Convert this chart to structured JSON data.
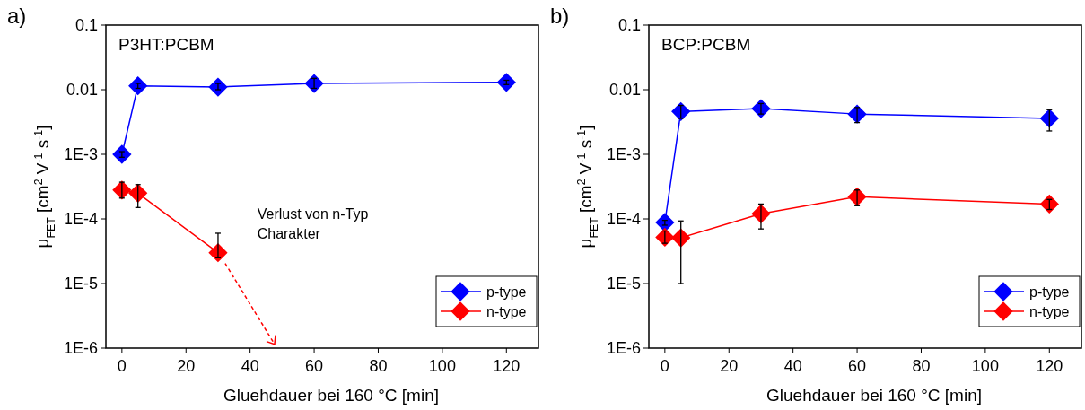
{
  "chart_data": [
    {
      "type": "line",
      "title": "a)",
      "xlabel": "Gluehdauer bei 160 °C [min]",
      "ylabel": "μ$_{FET}$ [cm$^{2}$ V$^{-1}$ s$^{-1}$]",
      "log": "y",
      "marker": "diamond",
      "legend": "bottom right",
      "x": [
        0,
        5,
        30,
        60,
        120
      ],
      "xlim": [
        -5,
        130
      ],
      "xticks": [
        0,
        20,
        40,
        60,
        80,
        100,
        120
      ],
      "ylim": [
        1e-06,
        0.1
      ],
      "yticks": [
        {
          "value": 1e-06,
          "label": "1E-6"
        },
        {
          "value": 1e-05,
          "label": "1E-5"
        },
        {
          "value": 0.0001,
          "label": "1E-4"
        },
        {
          "value": 0.001,
          "label": "1E-3"
        },
        {
          "value": 0.01,
          "label": "0.01"
        },
        {
          "value": 0.1,
          "label": "0.1"
        }
      ],
      "annotations": [
        "P3HT:PCBM",
        "Verlust von n-Typ\nCharakter"
      ],
      "series": [
        {
          "name": "p-type",
          "color": "#0000ff",
          "values": [
            0.001,
            0.0115,
            0.011,
            0.0125,
            0.013
          ],
          "errors": [
            [
              0.0009,
              0.0011
            ],
            [
              0.0105,
              0.0125
            ],
            [
              0.01,
              0.0125
            ],
            [
              0.0105,
              0.015
            ],
            [
              0.012,
              0.014
            ]
          ]
        },
        {
          "name": "n-type",
          "color": "#ff0000",
          "values": [
            0.00028,
            0.00025,
            3e-05,
            null,
            null
          ],
          "errors": [
            [
              0.00021,
              0.00037
            ],
            [
              0.00015,
              0.00034
            ],
            [
              2.5e-05,
              6e-05
            ],
            null,
            null
          ]
        }
      ]
    },
    {
      "type": "line",
      "title": "b)",
      "xlabel": "Gluehdauer bei 160 °C [min]",
      "ylabel": "μ$_{FET}$ [cm$^{2}$ V$^{-1}$ s$^{-1}$]",
      "log": "y",
      "marker": "diamond",
      "legend": "bottom right",
      "x": [
        0,
        5,
        30,
        60,
        120
      ],
      "xlim": [
        -5,
        130
      ],
      "xticks": [
        0,
        20,
        40,
        60,
        80,
        100,
        120
      ],
      "ylim": [
        1e-06,
        0.1
      ],
      "yticks": [
        {
          "value": 1e-06,
          "label": "1E-6"
        },
        {
          "value": 1e-05,
          "label": "1E-5"
        },
        {
          "value": 0.0001,
          "label": "1E-4"
        },
        {
          "value": 0.001,
          "label": "1E-3"
        },
        {
          "value": 0.01,
          "label": "0.01"
        },
        {
          "value": 0.1,
          "label": "0.1"
        }
      ],
      "annotations": [
        "BCP:PCBM"
      ],
      "series": [
        {
          "name": "p-type",
          "color": "#0000ff",
          "values": [
            8.8e-05,
            0.0046,
            0.0051,
            0.0042,
            0.0036
          ],
          "errors": [
            [
              8e-05,
              9.5e-05
            ],
            [
              0.0036,
              0.0057
            ],
            [
              0.0042,
              0.0061
            ],
            [
              0.0031,
              0.0053
            ],
            [
              0.0023,
              0.0049
            ]
          ]
        },
        {
          "name": "n-type",
          "color": "#ff0000",
          "values": [
            5.2e-05,
            5.1e-05,
            0.00012,
            0.00022,
            0.00017
          ],
          "errors": [
            [
              4.2e-05,
              6.5e-05
            ],
            [
              1e-05,
              9.3e-05
            ],
            [
              7e-05,
              0.00017
            ],
            [
              0.00016,
              0.00028
            ],
            [
              0.00014,
              0.0002
            ]
          ]
        }
      ]
    }
  ]
}
